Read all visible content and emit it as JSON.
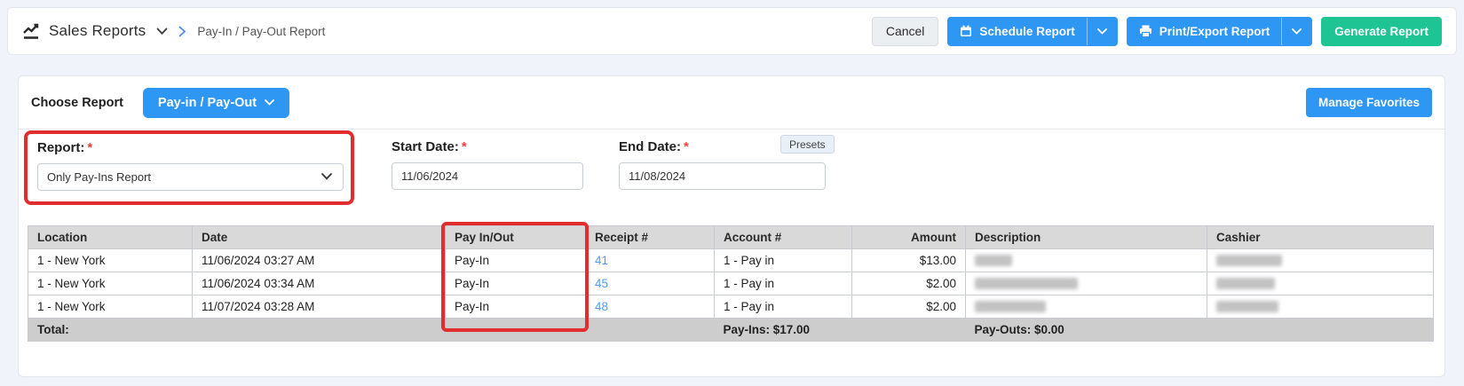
{
  "header": {
    "title": "Sales Reports",
    "breadcrumb": "Pay-In / Pay-Out Report",
    "buttons": {
      "cancel": "Cancel",
      "schedule": "Schedule Report",
      "print_export": "Print/Export Report",
      "generate": "Generate Report"
    }
  },
  "toolbar": {
    "choose_report_label": "Choose Report",
    "report_type_value": "Pay-in / Pay-Out",
    "manage_favorites": "Manage Favorites"
  },
  "form": {
    "report": {
      "label": "Report:",
      "required": "*",
      "value": "Only Pay-Ins Report"
    },
    "start_date": {
      "label": "Start Date:",
      "required": "*",
      "value": "11/06/2024"
    },
    "end_date": {
      "label": "End Date:",
      "required": "*",
      "value": "11/08/2024"
    },
    "presets_label": "Presets"
  },
  "table": {
    "columns": [
      "Location",
      "Date",
      "Pay In/Out",
      "Receipt #",
      "Account #",
      "Amount",
      "Description",
      "Cashier"
    ],
    "rows": [
      {
        "location": "1 - New York",
        "date": "11/06/2024 03:27 AM",
        "pay_in_out": "Pay-In",
        "receipt": "41",
        "account": "1 - Pay in",
        "amount": "$13.00",
        "description_redacted": true,
        "cashier_redacted": true
      },
      {
        "location": "1 - New York",
        "date": "11/06/2024 03:34 AM",
        "pay_in_out": "Pay-In",
        "receipt": "45",
        "account": "1 - Pay in",
        "amount": "$2.00",
        "description_redacted": true,
        "cashier_redacted": true
      },
      {
        "location": "1 - New York",
        "date": "11/07/2024 03:28 AM",
        "pay_in_out": "Pay-In",
        "receipt": "48",
        "account": "1 - Pay in",
        "amount": "$2.00",
        "description_redacted": true,
        "cashier_redacted": true
      }
    ],
    "total": {
      "label": "Total:",
      "pay_ins": "Pay-Ins: $17.00",
      "pay_outs": "Pay-Outs: $0.00"
    }
  },
  "colors": {
    "primary_blue": "#2e96f3",
    "generate_teal": "#1fc494",
    "annotation_red": "#e12d2d",
    "link_blue": "#4f9cf7",
    "table_header_gray": "#d9d9d9",
    "total_row_gray": "#cdcdcd"
  }
}
